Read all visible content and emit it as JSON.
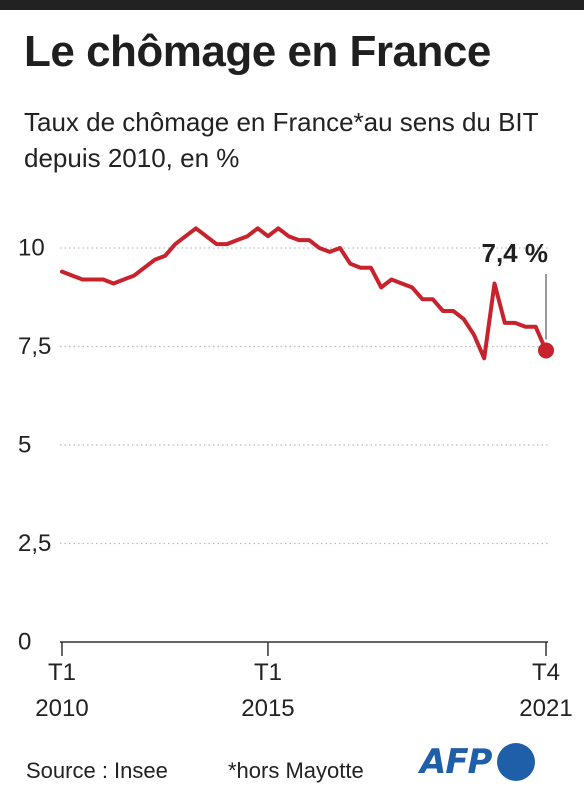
{
  "header": {
    "title": "Le chômage en France",
    "subtitle": "Taux de chômage en France*au sens du BIT depuis 2010, en %"
  },
  "footer": {
    "source": "Source : Insee",
    "note": "*hors Mayotte",
    "logo_text": "AFP"
  },
  "colors": {
    "line": "#c8232c",
    "grid": "#bdbdbd",
    "text": "#222222",
    "logo": "#1f5ea8"
  },
  "chart_data": {
    "type": "line",
    "title": "Le chômage en France",
    "subtitle": "Taux de chômage en France*au sens du BIT depuis 2010, en %",
    "xlabel": "",
    "ylabel": "",
    "ylim": [
      0,
      10.5
    ],
    "yticks": [
      {
        "value": 0,
        "label": "0"
      },
      {
        "value": 2.5,
        "label": "2,5"
      },
      {
        "value": 5,
        "label": "5"
      },
      {
        "value": 7.5,
        "label": "7,5"
      },
      {
        "value": 10,
        "label": "10"
      }
    ],
    "xticks": [
      {
        "index": 0,
        "line1": "T1",
        "line2": "2010"
      },
      {
        "index": 20,
        "line1": "T1",
        "line2": "2015"
      },
      {
        "index": 47,
        "line1": "T4",
        "line2": "2021"
      }
    ],
    "grid": true,
    "grid_style": "dotted horizontal",
    "x": [
      "T1 2010",
      "T2 2010",
      "T3 2010",
      "T4 2010",
      "T1 2011",
      "T2 2011",
      "T3 2011",
      "T4 2011",
      "T1 2012",
      "T2 2012",
      "T3 2012",
      "T4 2012",
      "T1 2013",
      "T2 2013",
      "T3 2013",
      "T4 2013",
      "T1 2014",
      "T2 2014",
      "T3 2014",
      "T4 2014",
      "T1 2015",
      "T2 2015",
      "T3 2015",
      "T4 2015",
      "T1 2016",
      "T2 2016",
      "T3 2016",
      "T4 2016",
      "T1 2017",
      "T2 2017",
      "T3 2017",
      "T4 2017",
      "T1 2018",
      "T2 2018",
      "T3 2018",
      "T4 2018",
      "T1 2019",
      "T2 2019",
      "T3 2019",
      "T4 2019",
      "T1 2020",
      "T2 2020",
      "T3 2020",
      "T4 2020",
      "T1 2021",
      "T2 2021",
      "T3 2021",
      "T4 2021"
    ],
    "series": [
      {
        "values": [
          9.4,
          9.3,
          9.2,
          9.2,
          9.2,
          9.1,
          9.2,
          9.3,
          9.5,
          9.7,
          9.8,
          10.1,
          10.3,
          10.5,
          10.3,
          10.1,
          10.1,
          10.2,
          10.3,
          10.5,
          10.3,
          10.5,
          10.3,
          10.2,
          10.2,
          10.0,
          9.9,
          10.0,
          9.6,
          9.5,
          9.5,
          9.0,
          9.2,
          9.1,
          9.0,
          8.7,
          8.7,
          8.4,
          8.4,
          8.2,
          7.8,
          7.2,
          9.1,
          8.1,
          8.1,
          8.0,
          8.0,
          7.4
        ]
      }
    ],
    "annotations": [
      {
        "text": "7,4 %",
        "x": "T4 2021",
        "y": 7.4
      }
    ]
  }
}
